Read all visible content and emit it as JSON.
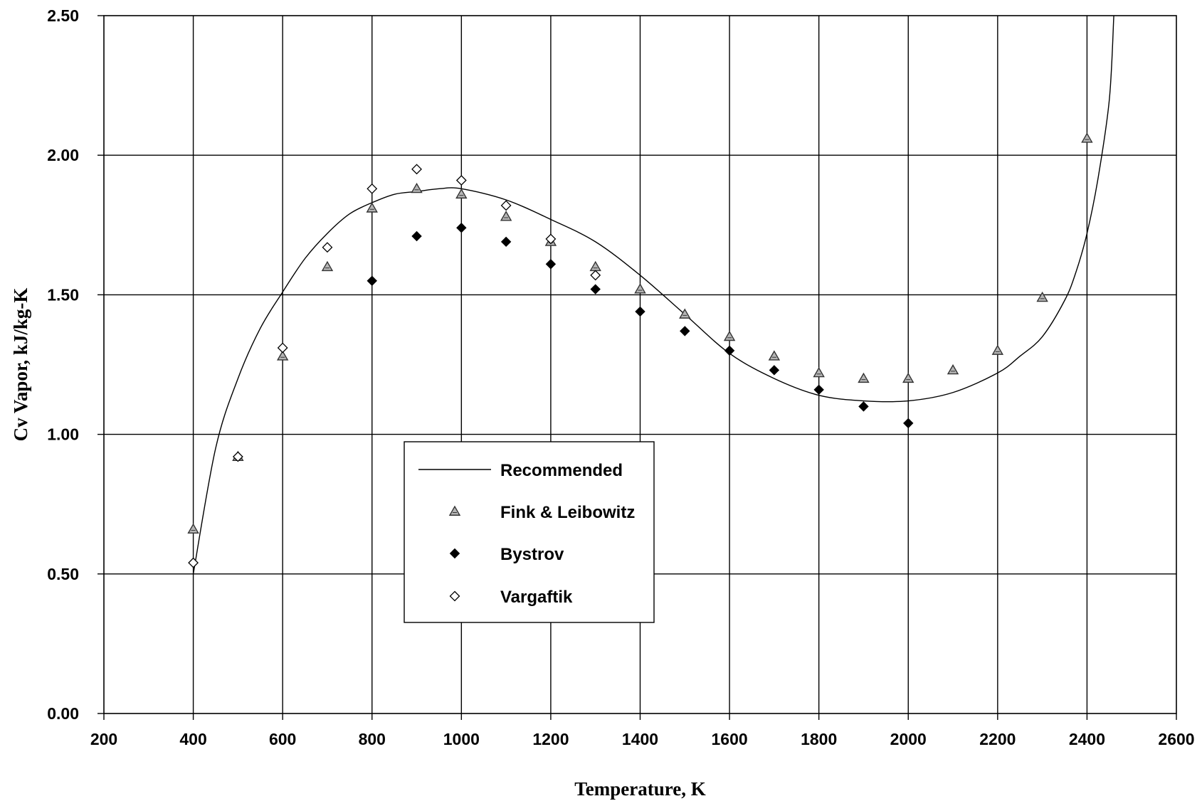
{
  "chart_data": {
    "type": "scatter",
    "title": "",
    "xlabel": "Temperature, K",
    "ylabel": "Cv Vapor, kJ/kg-K",
    "xlim": [
      200,
      2600
    ],
    "ylim": [
      0.0,
      2.5
    ],
    "grid": true,
    "x_ticks": [
      200,
      400,
      600,
      800,
      1000,
      1200,
      1400,
      1600,
      1800,
      2000,
      2200,
      2400,
      2600
    ],
    "x_tick_labels": [
      "200",
      "400",
      "600",
      "800",
      "1000",
      "1200",
      "1400",
      "1600",
      "1800",
      "2000",
      "2200",
      "2400",
      "2600"
    ],
    "y_ticks": [
      0.0,
      0.5,
      1.0,
      1.5,
      2.0,
      2.5
    ],
    "y_tick_labels": [
      "0.00",
      "0.50",
      "1.00",
      "1.50",
      "2.00",
      "2.50"
    ],
    "legend": {
      "position": "lower-center-left",
      "entries": [
        "Recommended",
        "Fink & Leibowitz",
        "Bystrov",
        "Vargaftik"
      ]
    },
    "series": [
      {
        "name": "Recommended",
        "kind": "line",
        "color": "#000000",
        "x": [
          400,
          450,
          500,
          550,
          600,
          650,
          700,
          750,
          800,
          850,
          900,
          950,
          1000,
          1100,
          1200,
          1300,
          1400,
          1500,
          1600,
          1700,
          1800,
          1900,
          2000,
          2100,
          2200,
          2250,
          2300,
          2350,
          2375,
          2400,
          2425,
          2450,
          2460
        ],
        "y": [
          0.5,
          0.95,
          1.2,
          1.38,
          1.51,
          1.63,
          1.72,
          1.79,
          1.83,
          1.86,
          1.87,
          1.88,
          1.88,
          1.84,
          1.77,
          1.69,
          1.57,
          1.43,
          1.29,
          1.2,
          1.14,
          1.12,
          1.12,
          1.15,
          1.22,
          1.28,
          1.35,
          1.48,
          1.58,
          1.72,
          1.92,
          2.2,
          2.5
        ]
      },
      {
        "name": "Fink & Leibowitz",
        "kind": "scatter",
        "marker": "triangle",
        "color": "#777777",
        "x": [
          400,
          500,
          600,
          700,
          800,
          900,
          1000,
          1100,
          1200,
          1300,
          1400,
          1500,
          1600,
          1700,
          1800,
          1900,
          2000,
          2100,
          2200,
          2300,
          2400
        ],
        "y": [
          0.66,
          0.92,
          1.28,
          1.6,
          1.81,
          1.88,
          1.86,
          1.78,
          1.69,
          1.6,
          1.52,
          1.43,
          1.35,
          1.28,
          1.22,
          1.2,
          1.2,
          1.23,
          1.3,
          1.49,
          2.06
        ]
      },
      {
        "name": "Bystrov",
        "kind": "scatter",
        "marker": "diamond-filled",
        "color": "#000000",
        "x": [
          800,
          900,
          1000,
          1100,
          1200,
          1300,
          1400,
          1500,
          1600,
          1700,
          1800,
          1900,
          2000
        ],
        "y": [
          1.55,
          1.71,
          1.74,
          1.69,
          1.61,
          1.52,
          1.44,
          1.37,
          1.3,
          1.23,
          1.16,
          1.1,
          1.04
        ]
      },
      {
        "name": "Vargaftik",
        "kind": "scatter",
        "marker": "diamond-open",
        "color": "#000000",
        "x": [
          400,
          500,
          600,
          700,
          800,
          900,
          1000,
          1100,
          1200,
          1300
        ],
        "y": [
          0.54,
          0.92,
          1.31,
          1.67,
          1.88,
          1.95,
          1.91,
          1.82,
          1.7,
          1.57
        ]
      }
    ]
  }
}
